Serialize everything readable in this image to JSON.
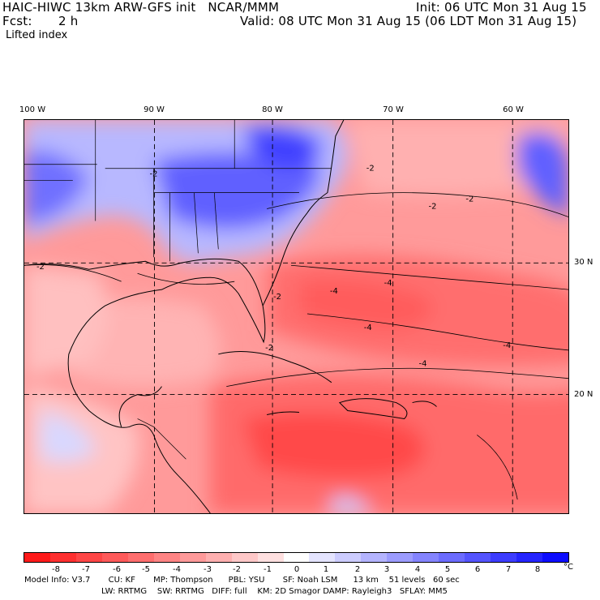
{
  "header": {
    "title": "HAIC-HIWC 13km ARW-GFS init   NCAR/MMM",
    "init": "Init: 06 UTC Mon 31 Aug 15",
    "fcst_label": "Fcst:",
    "fcst_value": "2 h",
    "valid": "Valid: 08 UTC Mon 31 Aug 15 (06 LDT Mon 31 Aug 15)",
    "field": "Lifted index"
  },
  "map": {
    "longitude_labels": [
      "100 W",
      "90 W",
      "80 W",
      "70 W",
      "60 W"
    ],
    "latitude_labels": [
      "30 N",
      "20 N"
    ],
    "contour_labels": [
      "-2",
      "-2",
      "-2",
      "-2",
      "-2",
      "-2",
      "-2",
      "-4",
      "-4",
      "-4",
      "-4",
      "-4"
    ]
  },
  "colorbar": {
    "ticks": [
      "-8",
      "-7",
      "-6",
      "-5",
      "-4",
      "-3",
      "-2",
      "-1",
      "0",
      "1",
      "2",
      "3",
      "4",
      "5",
      "6",
      "7",
      "8"
    ],
    "unit": "°C",
    "colors": [
      "#ff1a1a",
      "#ff3030",
      "#ff4646",
      "#ff5a5a",
      "#ff6e6e",
      "#ff8484",
      "#ff9a9a",
      "#ffb0b0",
      "#ffc8c8",
      "#ffe0e0",
      "#ffffff",
      "#e4e4ff",
      "#ccccff",
      "#b4b4ff",
      "#9c9cff",
      "#8484ff",
      "#6c6cff",
      "#5454ff",
      "#3c3cff",
      "#2424ff",
      "#0c0cff"
    ]
  },
  "model_info": {
    "line1": "Model Info: V3.7       CU: KF       MP: Thompson      PBL: YSU       SF: Noah LSM      13 km    51 levels   60 sec",
    "line2": "LW: RRTMG    SW: RRTMG   DIFF: full    KM: 2D Smagor DAMP: Rayleigh3   SFLAY: MM5"
  }
}
